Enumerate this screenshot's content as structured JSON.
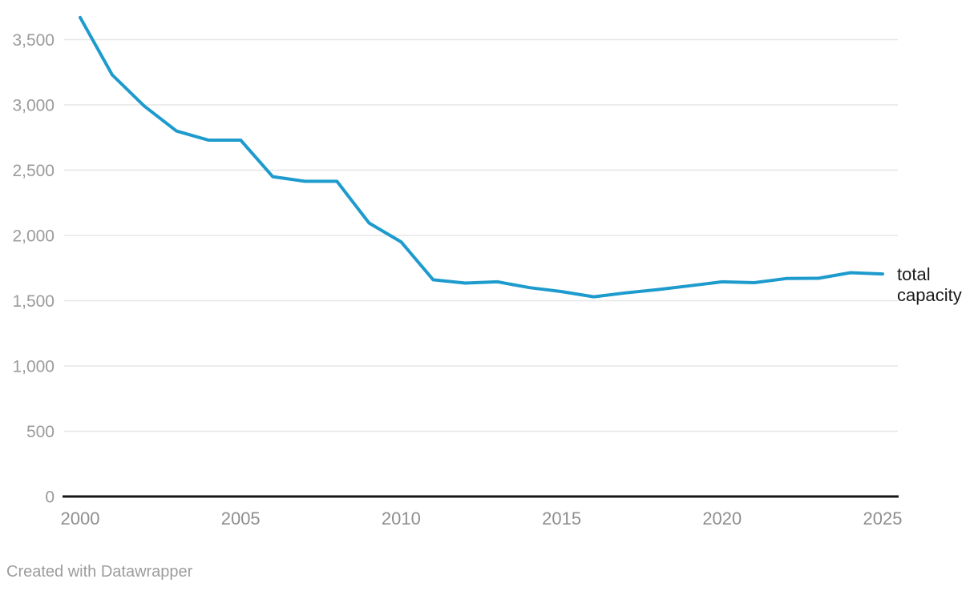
{
  "chart_data": {
    "type": "line",
    "x": [
      2000,
      2001,
      2002,
      2003,
      2004,
      2005,
      2006,
      2007,
      2008,
      2009,
      2010,
      2011,
      2012,
      2013,
      2014,
      2015,
      2016,
      2017,
      2018,
      2019,
      2020,
      2021,
      2022,
      2023,
      2024,
      2025
    ],
    "series": [
      {
        "name": "total capacity",
        "color": "#1e9bcd",
        "values": [
          3670,
          3230,
          2990,
          2800,
          2730,
          2730,
          2450,
          2415,
          2415,
          2095,
          1950,
          1660,
          1635,
          1645,
          1600,
          1570,
          1530,
          1560,
          1585,
          1615,
          1645,
          1638,
          1670,
          1672,
          1715,
          1705
        ]
      }
    ],
    "xlim": [
      2000,
      2025
    ],
    "ylim": [
      0,
      3500
    ],
    "x_ticks": [
      2000,
      2005,
      2010,
      2015,
      2020,
      2025
    ],
    "x_tick_labels": [
      "2000",
      "2005",
      "2010",
      "2015",
      "2020",
      "2025"
    ],
    "y_ticks": [
      0,
      500,
      1000,
      1500,
      2000,
      2500,
      3000,
      3500
    ],
    "y_tick_labels": [
      "0",
      "500",
      "1,000",
      "1,500",
      "2,000",
      "2,500",
      "3,000",
      "3,500"
    ],
    "grid": "horizontal gridlines on",
    "legend_position": "label at end of line, right side",
    "xlabel": "",
    "ylabel": ""
  },
  "colors": {
    "line": "#1e9bcd",
    "grid": "#e6e6e6",
    "axis": "#161616",
    "y_tick_label": "#9b9b9b",
    "x_tick_label": "#8e8e8e",
    "series_label": "#1a1a1a",
    "footer": "#9c9c9c",
    "background": "#ffffff"
  },
  "footer": {
    "attribution": "Created with Datawrapper"
  }
}
